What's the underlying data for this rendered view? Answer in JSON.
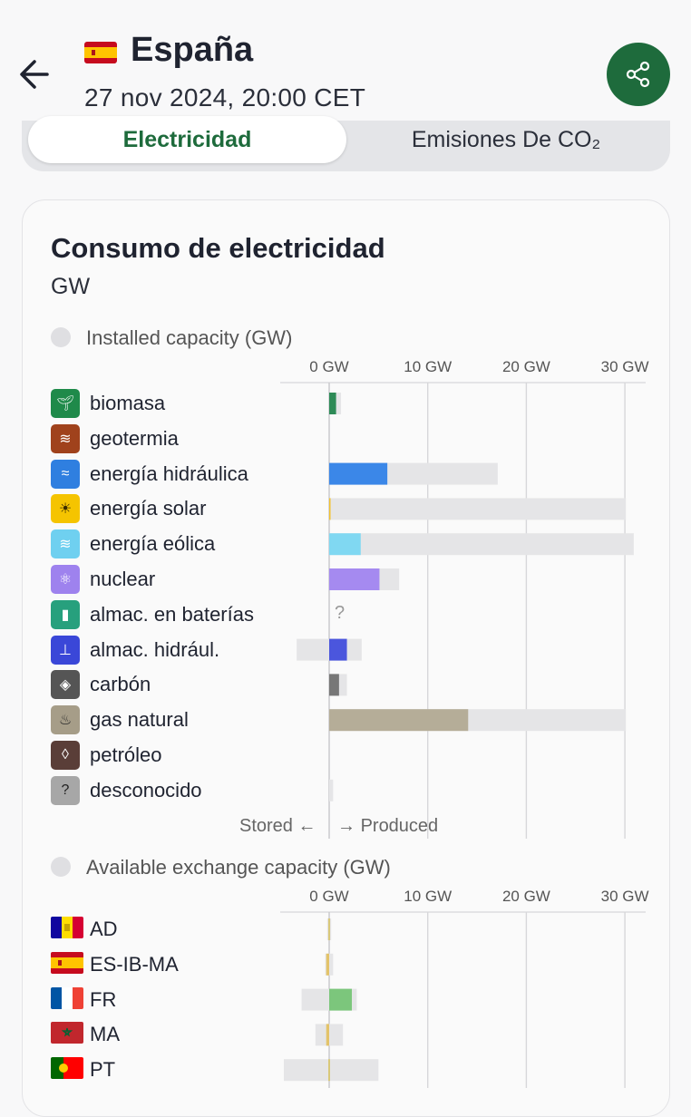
{
  "header": {
    "zone_name": "España",
    "datetime": "27 nov 2024, 20:00 CET"
  },
  "tabs": [
    {
      "label": "Electricidad",
      "active": true
    },
    {
      "label": "Emisiones De CO₂",
      "active": false
    }
  ],
  "card": {
    "title": "Consumo de electricidad",
    "unit": "GW",
    "production": {
      "section_label": "Installed capacity (GW)",
      "axis_ticks": [
        "0 GW",
        "10 GW",
        "20 GW",
        "30 GW"
      ],
      "stored_label": "Stored",
      "produced_label": "Produced",
      "battery_unknown": "?",
      "rows": [
        {
          "name": "biomasa",
          "icon": "sprout-icon",
          "color": "#2e8b57",
          "value_gw": 0.7,
          "capacity_gw": 1.2
        },
        {
          "name": "geotermia",
          "icon": "heat-waves-icon",
          "color": "#a0421c",
          "value_gw": 0,
          "capacity_gw": 0
        },
        {
          "name": "energía hidráulica",
          "icon": "water-waves-icon",
          "color": "#3b87e8",
          "value_gw": 5.9,
          "capacity_gw": 17.1
        },
        {
          "name": "energía solar",
          "icon": "sun-icon",
          "color": "#f2c12e",
          "value_gw": 0.1,
          "capacity_gw": 30.1
        },
        {
          "name": "energía eólica",
          "icon": "wind-icon",
          "color": "#80d8f2",
          "value_gw": 3.2,
          "capacity_gw": 30.9
        },
        {
          "name": "nuclear",
          "icon": "atom-icon",
          "color": "#a58af0",
          "value_gw": 5.1,
          "capacity_gw": 7.1
        },
        {
          "name": "almac. en baterías",
          "icon": "battery-icon",
          "color": "#2d9b7a",
          "value_gw": null,
          "capacity_gw": null
        },
        {
          "name": "almac. hidrául.",
          "icon": "pumped-storage-icon",
          "color": "#4b56dd",
          "value_gw": 1.8,
          "capacity_gw": 3.3,
          "stored_capacity_gw": -3.3
        },
        {
          "name": "carbón",
          "icon": "coal-icon",
          "color": "#777777",
          "value_gw": 1.0,
          "capacity_gw": 1.8
        },
        {
          "name": "gas natural",
          "icon": "flame-icon",
          "color": "#b5ad98",
          "value_gw": 14.1,
          "capacity_gw": 30.1
        },
        {
          "name": "petróleo",
          "icon": "oil-drop-icon",
          "color": "#5a3e38",
          "value_gw": 0,
          "capacity_gw": 0
        },
        {
          "name": "desconocido",
          "icon": "question-icon",
          "color": "#9a9a9a",
          "value_gw": 0,
          "capacity_gw": 0.4
        }
      ]
    },
    "exchange": {
      "section_label": "Available exchange capacity (GW)",
      "axis_ticks": [
        "0 GW",
        "10 GW",
        "20 GW",
        "30 GW"
      ],
      "rows": [
        {
          "code": "AD",
          "flag": "andorra-flag",
          "value_gw": 0,
          "import_capacity_gw": 0.2,
          "export_capacity_gw": 0.2,
          "color": "#d9c87a"
        },
        {
          "code": "ES-IB-MA",
          "flag": "spain-flag",
          "value_gw": -0.3,
          "import_capacity_gw": 0.4,
          "export_capacity_gw": 0.4,
          "color": "#e3c36a"
        },
        {
          "code": "FR",
          "flag": "france-flag",
          "value_gw": 2.3,
          "import_capacity_gw": 2.8,
          "export_capacity_gw": 2.8,
          "color": "#7cc67c"
        },
        {
          "code": "MA",
          "flag": "morocco-flag",
          "value_gw": -0.3,
          "import_capacity_gw": 1.4,
          "export_capacity_gw": 1.4,
          "color": "#e3c36a"
        },
        {
          "code": "PT",
          "flag": "portugal-flag",
          "value_gw": 0,
          "import_capacity_gw": 4.6,
          "export_capacity_gw": 5.0,
          "color": "#d9c87a"
        }
      ]
    }
  }
}
